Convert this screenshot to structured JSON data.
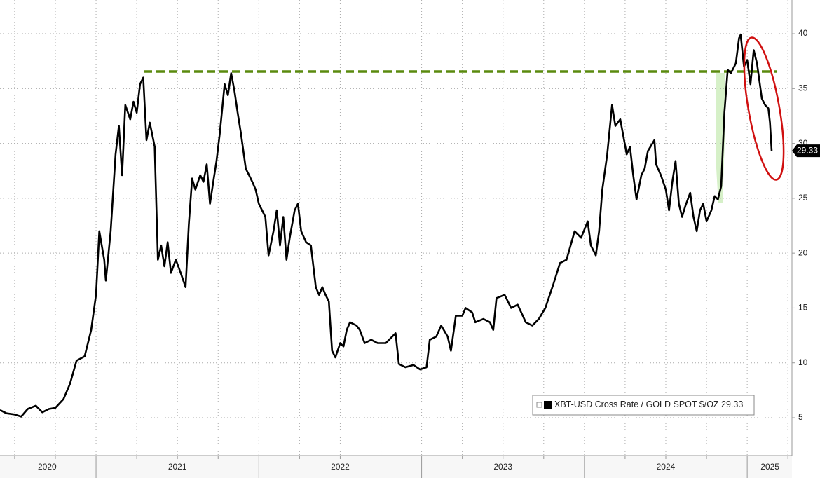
{
  "chart_data": {
    "type": "line",
    "series": [
      {
        "name": "XBT-USD Cross Rate / GOLD SPOT $/OZ",
        "color": "#000000",
        "x": [
          2020.41,
          2020.45,
          2020.5,
          2020.54,
          2020.58,
          2020.63,
          2020.67,
          2020.71,
          2020.75,
          2020.8,
          2020.84,
          2020.88,
          2020.93,
          2020.97,
          2021.0,
          2021.02,
          2021.05,
          2021.06,
          2021.09,
          2021.12,
          2021.14,
          2021.16,
          2021.18,
          2021.21,
          2021.23,
          2021.25,
          2021.27,
          2021.29,
          2021.31,
          2021.33,
          2021.36,
          2021.38,
          2021.4,
          2021.42,
          2021.44,
          2021.46,
          2021.49,
          2021.52,
          2021.55,
          2021.57,
          2021.59,
          2021.61,
          2021.64,
          2021.66,
          2021.68,
          2021.7,
          2021.72,
          2021.74,
          2021.76,
          2021.79,
          2021.81,
          2021.83,
          2021.85,
          2021.87,
          2021.89,
          2021.92,
          2021.94,
          2021.96,
          2021.98,
          2022.0,
          2022.04,
          2022.06,
          2022.09,
          2022.11,
          2022.13,
          2022.15,
          2022.17,
          2022.19,
          2022.22,
          2022.24,
          2022.26,
          2022.29,
          2022.32,
          2022.35,
          2022.37,
          2022.39,
          2022.41,
          2022.43,
          2022.45,
          2022.47,
          2022.5,
          2022.52,
          2022.54,
          2022.56,
          2022.6,
          2022.62,
          2022.65,
          2022.69,
          2022.73,
          2022.78,
          2022.82,
          2022.84,
          2022.86,
          2022.9,
          2022.95,
          2022.99,
          2023.03,
          2023.05,
          2023.09,
          2023.12,
          2023.16,
          2023.18,
          2023.21,
          2023.25,
          2023.27,
          2023.31,
          2023.33,
          2023.38,
          2023.42,
          2023.44,
          2023.46,
          2023.51,
          2023.55,
          2023.59,
          2023.64,
          2023.68,
          2023.72,
          2023.76,
          2023.81,
          2023.85,
          2023.89,
          2023.94,
          2023.98,
          2024.02,
          2024.04,
          2024.07,
          2024.09,
          2024.11,
          2024.14,
          2024.17,
          2024.19,
          2024.22,
          2024.26,
          2024.28,
          2024.3,
          2024.32,
          2024.35,
          2024.37,
          2024.39,
          2024.43,
          2024.44,
          2024.47,
          2024.5,
          2024.52,
          2024.54,
          2024.56,
          2024.58,
          2024.6,
          2024.62,
          2024.65,
          2024.67,
          2024.69,
          2024.71,
          2024.73,
          2024.75,
          2024.78,
          2024.8,
          2024.82,
          2024.84,
          2024.86,
          2024.88,
          2024.9,
          2024.93,
          2024.95,
          2024.96,
          2024.98,
          2025.0,
          2025.02,
          2025.04,
          2025.06,
          2025.09,
          2025.11,
          2025.13,
          2025.14,
          2025.15
        ],
        "values": [
          5.7,
          5.4,
          5.3,
          5.1,
          5.8,
          6.1,
          5.5,
          5.8,
          5.9,
          6.7,
          8.1,
          10.2,
          10.6,
          13.0,
          16.2,
          22.0,
          19.4,
          17.5,
          22.0,
          29.0,
          31.6,
          27.1,
          33.5,
          32.2,
          33.8,
          32.8,
          35.4,
          36.0,
          30.3,
          31.9,
          29.7,
          19.4,
          20.7,
          18.8,
          21.0,
          18.2,
          19.4,
          18.2,
          16.9,
          22.6,
          26.8,
          25.8,
          27.1,
          26.5,
          28.1,
          24.5,
          26.5,
          28.4,
          30.9,
          35.4,
          34.4,
          36.4,
          34.8,
          32.8,
          30.9,
          27.7,
          27.1,
          26.5,
          25.8,
          24.5,
          23.3,
          19.8,
          22.0,
          23.9,
          20.7,
          23.3,
          19.4,
          21.4,
          23.9,
          24.5,
          22.0,
          21.0,
          20.7,
          16.9,
          16.2,
          16.9,
          16.2,
          15.6,
          11.1,
          10.5,
          11.8,
          11.5,
          13.0,
          13.7,
          13.4,
          13.0,
          11.8,
          12.1,
          11.8,
          11.8,
          12.4,
          12.7,
          9.9,
          9.6,
          9.8,
          9.4,
          9.6,
          12.1,
          12.4,
          13.4,
          12.4,
          11.1,
          14.3,
          14.3,
          15.0,
          14.6,
          13.7,
          14.0,
          13.7,
          13.0,
          15.9,
          16.2,
          15.0,
          15.3,
          13.7,
          13.4,
          14.0,
          15.0,
          17.2,
          19.1,
          19.4,
          22.0,
          21.4,
          22.9,
          20.7,
          19.8,
          22.0,
          25.8,
          29.0,
          33.5,
          31.6,
          32.2,
          29.0,
          29.7,
          27.1,
          24.9,
          27.1,
          27.7,
          29.3,
          30.3,
          28.1,
          27.1,
          25.8,
          23.9,
          26.5,
          28.4,
          24.5,
          23.3,
          24.3,
          25.5,
          23.3,
          22.0,
          23.9,
          24.5,
          22.9,
          23.9,
          25.2,
          24.9,
          26.1,
          32.8,
          36.7,
          36.4,
          37.3,
          39.6,
          39.9,
          37.0,
          37.6,
          35.4,
          38.5,
          37.3,
          34.1,
          33.5,
          33.2,
          31.9,
          29.33
        ]
      }
    ],
    "xlim": [
      2020.41,
      2025.275
    ],
    "xticks": [
      {
        "value": 2020.7,
        "label": "2020"
      },
      {
        "value": 2021.5,
        "label": "2021"
      },
      {
        "value": 2022.5,
        "label": "2022"
      },
      {
        "value": 2023.5,
        "label": "2023"
      },
      {
        "value": 2024.5,
        "label": "2024"
      },
      {
        "value": 2025.14,
        "label": "2025"
      }
    ],
    "x_minor_ticks": [
      2020.5,
      2020.75,
      2021,
      2021.25,
      2021.5,
      2021.75,
      2022,
      2022.25,
      2022.5,
      2022.75,
      2023,
      2023.25,
      2023.5,
      2023.75,
      2024,
      2024.25,
      2024.5,
      2024.75,
      2025,
      2025.25
    ],
    "ylim": [
      1.55,
      43.07
    ],
    "yticks": [
      5,
      10,
      15,
      20,
      25,
      30,
      35,
      40
    ],
    "grid": true
  }
}
